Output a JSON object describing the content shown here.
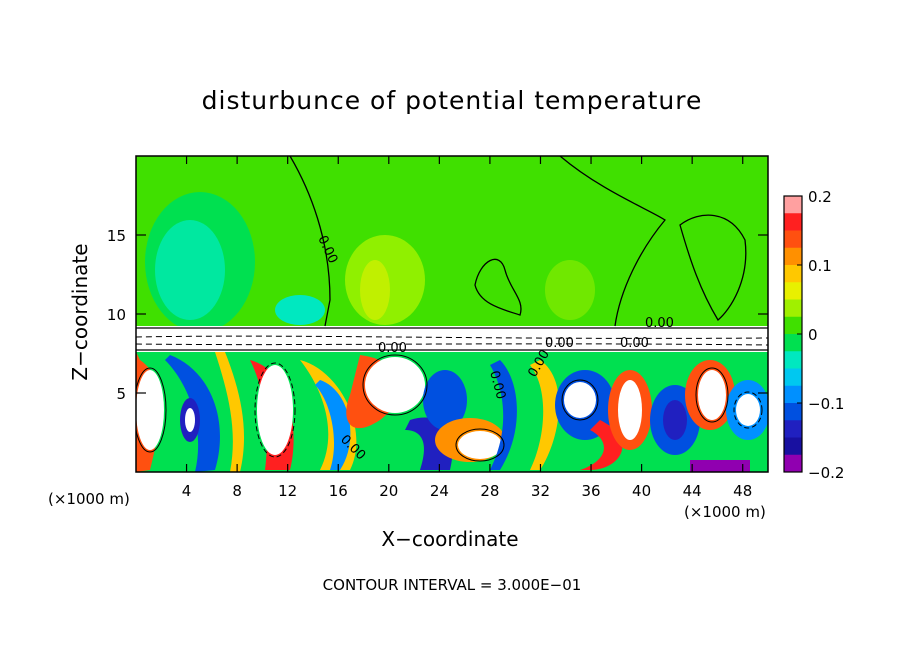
{
  "chart_data": {
    "type": "heatmap",
    "title": "disturbunce of potential temperature",
    "xlabel": "X−coordinate",
    "ylabel": "Z−coordinate",
    "x_unit": "(×1000 m)",
    "y_unit": "(×1000 m)",
    "xlim": [
      0,
      50
    ],
    "ylim": [
      0,
      20
    ],
    "x_ticks": [
      4,
      8,
      12,
      16,
      20,
      24,
      28,
      32,
      36,
      40,
      44,
      48
    ],
    "y_ticks": [
      5,
      10,
      15
    ],
    "colorbar": {
      "min": -0.2,
      "max": 0.2,
      "tick_values": [
        0.2,
        0.1,
        0,
        -0.1,
        -0.2
      ],
      "tick_labels": [
        "0.2",
        "0.1",
        "0",
        "−0.1",
        "−0.2"
      ],
      "colors": [
        "#ffa0a0",
        "#ff2020",
        "#ff5010",
        "#ff9000",
        "#ffc800",
        "#e8f000",
        "#a0f000",
        "#40e000",
        "#00e050",
        "#00e8c0",
        "#00c8f0",
        "#0090ff",
        "#0050e0",
        "#2020c0",
        "#1810a0",
        "#9000b0"
      ]
    },
    "contour_labels": [
      "0.00",
      "0.00",
      "0.00",
      "0.00",
      "0.00",
      "0.00",
      "0.00",
      "0.00"
    ],
    "footnote": "CONTOUR INTERVAL = 3.000E−01"
  }
}
